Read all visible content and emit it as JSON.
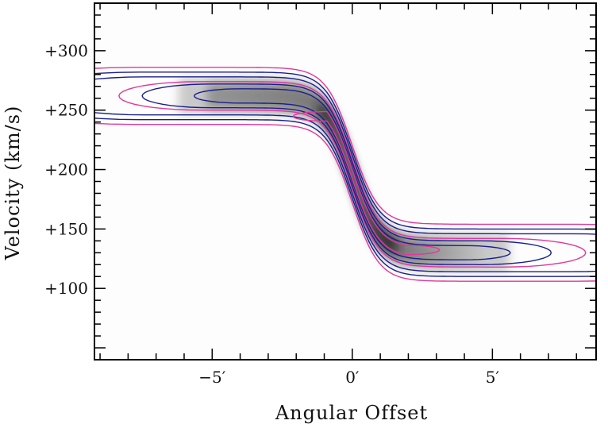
{
  "chart_data": {
    "type": "position-velocity diagram",
    "xlabel": "Angular Offset",
    "ylabel": "Velocity (km/s)",
    "x_unit": "arcmin",
    "xlim": [
      -9.2,
      8.7
    ],
    "ylim": [
      40,
      340
    ],
    "x_ticks": [
      {
        "value": -5,
        "label": "−5′"
      },
      {
        "value": 0,
        "label": "0′"
      },
      {
        "value": 5,
        "label": "5′"
      }
    ],
    "y_ticks": [
      {
        "value": 100,
        "label": "+100"
      },
      {
        "value": 150,
        "label": "+150"
      },
      {
        "value": 200,
        "label": "+200"
      },
      {
        "value": 250,
        "label": "+250"
      },
      {
        "value": 300,
        "label": "+300"
      }
    ],
    "grid": false,
    "legend": "none",
    "rotation_curve": {
      "systemic_velocity": 196,
      "amplitude": 66,
      "scale": 0.95,
      "x_range": [
        -8,
        8
      ]
    },
    "contours": [
      {
        "color": "#e0389b",
        "half_width": 24,
        "x_range": [
          -7.8,
          8.0
        ]
      },
      {
        "color": "#1a1f8c",
        "half_width": 20,
        "x_range": [
          -7.6,
          8.0
        ]
      },
      {
        "color": "#1a1f8c",
        "half_width": 16,
        "x_range": [
          -7.4,
          7.8
        ]
      },
      {
        "color": "#e0389b",
        "half_width": 12,
        "x_range": [
          -5.4,
          5.4
        ]
      },
      {
        "color": "#1a1f8c",
        "half_width": 10,
        "x_range": [
          -5.0,
          4.6
        ]
      },
      {
        "color": "#1a1f8c",
        "half_width": 6,
        "x_range": [
          -4.0,
          4.0
        ]
      },
      {
        "color": "#e0389b",
        "half_width": 4,
        "x_range": [
          -0.9,
          1.9
        ]
      }
    ],
    "colors": {
      "frame": "#000000",
      "contour_magenta": "#e0389b",
      "contour_navy": "#1a1f8c"
    }
  }
}
